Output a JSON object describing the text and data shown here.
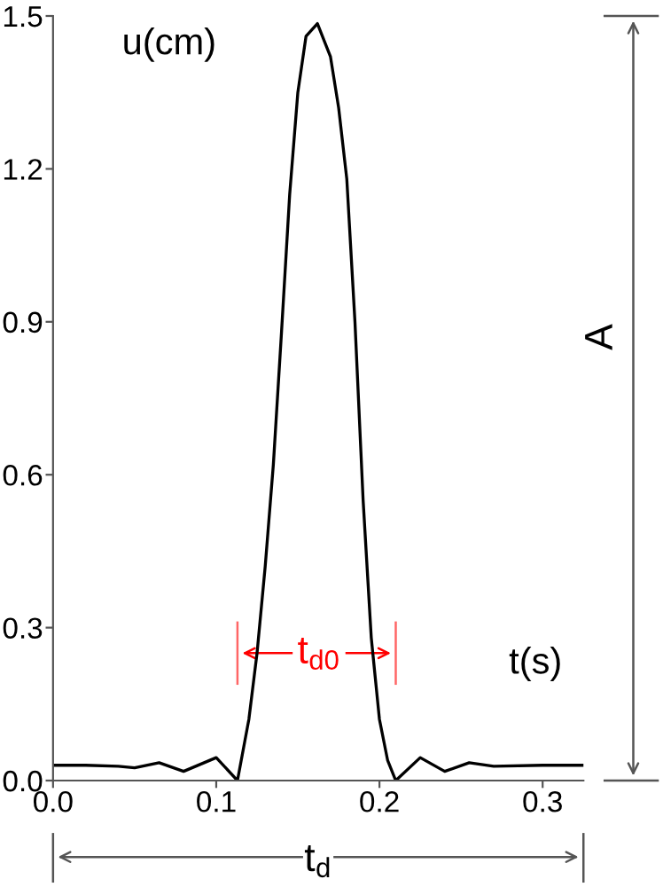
{
  "chart_data": {
    "type": "line",
    "xlabel": "t(s)",
    "ylabel": "u(cm)",
    "x": [
      0,
      0.02,
      0.04,
      0.05,
      0.065,
      0.08,
      0.1,
      0.113,
      0.12,
      0.125,
      0.13,
      0.135,
      0.14,
      0.145,
      0.15,
      0.155,
      0.162,
      0.17,
      0.175,
      0.18,
      0.185,
      0.19,
      0.195,
      0.2,
      0.205,
      0.21,
      0.225,
      0.24,
      0.255,
      0.27,
      0.3,
      0.325
    ],
    "series": [
      {
        "color": "#000000",
        "values": [
          0.03,
          0.03,
          0.028,
          0.025,
          0.035,
          0.018,
          0.045,
          0.0,
          0.12,
          0.25,
          0.42,
          0.62,
          0.88,
          1.15,
          1.35,
          1.46,
          1.485,
          1.42,
          1.32,
          1.18,
          0.9,
          0.55,
          0.28,
          0.12,
          0.04,
          0.0,
          0.045,
          0.018,
          0.035,
          0.028,
          0.03,
          0.03
        ]
      }
    ],
    "xlim": [
      0,
      0.325
    ],
    "ylim": [
      0,
      1.5
    ],
    "xticks": [
      {
        "value": 0,
        "label": "0.0"
      },
      0.1,
      0.2,
      0.3
    ],
    "yticks": [
      {
        "value": 0,
        "label": "0.0"
      },
      0.3,
      0.6,
      0.9,
      1.2,
      1.5
    ],
    "grid": false,
    "legend": false,
    "marker": "none",
    "line_style": "solid",
    "annotations": [
      {
        "text": "t$_{d0}$",
        "x": 0.163,
        "y": 0.25
      },
      "A",
      "t$_{d}$"
    ]
  }
}
